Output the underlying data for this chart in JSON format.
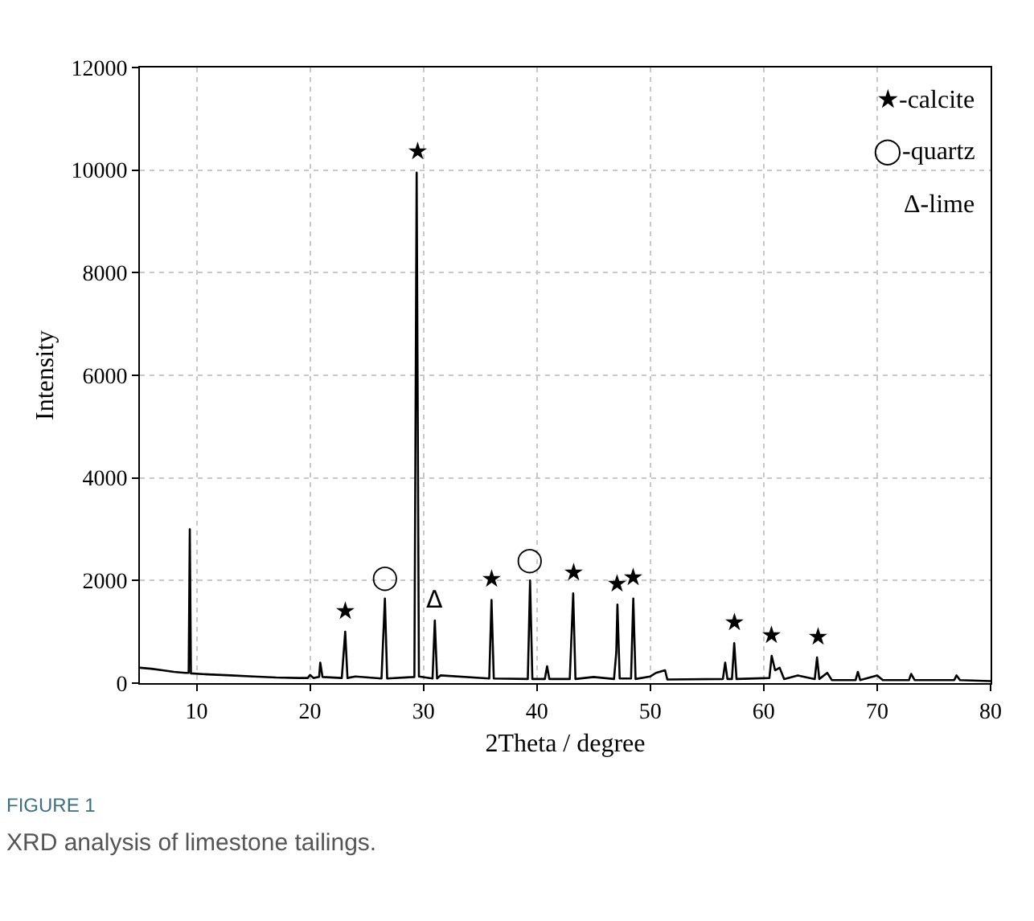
{
  "chart_data": {
    "type": "line",
    "xlabel": "2Theta / degree",
    "ylabel": "Intensity",
    "x": [
      5,
      6,
      7,
      8,
      9,
      9.3,
      9.4,
      9.5,
      11,
      13,
      15,
      17,
      19,
      19.8,
      20,
      20.3,
      20.8,
      20.9,
      21.1,
      22.8,
      23.1,
      23.3,
      24,
      26.3,
      26.6,
      26.8,
      29.2,
      29.4,
      29.6,
      30.8,
      31.0,
      31.2,
      31.5,
      35.8,
      36.0,
      36.2,
      39.2,
      39.4,
      39.6,
      40.7,
      40.9,
      41.1,
      42.9,
      43.2,
      43.4,
      45,
      46.8,
      47.0,
      47.1,
      47.3,
      48.3,
      48.5,
      48.7,
      50,
      50.5,
      51.3,
      51.5,
      56.4,
      56.6,
      56.8,
      57.2,
      57.4,
      57.6,
      60.5,
      60.7,
      61.0,
      61.4,
      61.8,
      63,
      64.5,
      64.7,
      64.9,
      65.6,
      66,
      68.1,
      68.3,
      68.5,
      70,
      70.5,
      72.8,
      73,
      73.3,
      76.8,
      77,
      77.3,
      80
    ],
    "series": [
      {
        "color": "#000000",
        "values": [
          300,
          280,
          250,
          220,
          200,
          200,
          3000,
          190,
          170,
          150,
          130,
          110,
          100,
          100,
          160,
          100,
          120,
          400,
          120,
          100,
          1000,
          100,
          130,
          90,
          1650,
          90,
          120,
          9950,
          130,
          90,
          1220,
          90,
          150,
          90,
          1620,
          90,
          80,
          2000,
          80,
          80,
          330,
          80,
          80,
          1750,
          80,
          120,
          80,
          600,
          1530,
          90,
          90,
          1650,
          80,
          130,
          200,
          250,
          70,
          80,
          400,
          80,
          80,
          780,
          80,
          100,
          530,
          250,
          300,
          80,
          150,
          80,
          500,
          80,
          200,
          60,
          60,
          220,
          60,
          150,
          60,
          60,
          180,
          60,
          60,
          150,
          60,
          40
        ]
      }
    ],
    "xlim": [
      5,
      80
    ],
    "xticks": [
      10,
      20,
      30,
      40,
      50,
      60,
      70,
      80
    ],
    "ylim": [
      0,
      12000
    ],
    "yticks": [
      0,
      2000,
      4000,
      6000,
      8000,
      10000,
      12000
    ],
    "grid": true,
    "marker": "none",
    "line_style": "solid",
    "annotations": [
      {
        "text": "★",
        "x": 23.1,
        "y": 1000
      },
      {
        "text": "★",
        "x": 29.4,
        "y": 9950
      },
      {
        "text": "★",
        "x": 36.0,
        "y": 1620
      },
      {
        "text": "★",
        "x": 43.2,
        "y": 1750
      },
      {
        "text": "★",
        "x": 47.1,
        "y": 1530
      },
      {
        "text": "★",
        "x": 48.5,
        "y": 1650
      },
      {
        "text": "★",
        "x": 57.4,
        "y": 780
      },
      {
        "text": "★",
        "x": 60.7,
        "y": 530
      },
      {
        "text": "★",
        "x": 64.7,
        "y": 500
      },
      {
        "text": "◯",
        "x": 26.6,
        "y": 1650
      },
      {
        "text": "◯",
        "x": 39.4,
        "y": 2000
      },
      {
        "text": "Δ",
        "x": 31.0,
        "y": 1220
      },
      "★-calcite",
      "◯-quartz",
      "Δ-lime",
      "FIGURE 1",
      "XRD analysis of limestone tailings."
    ]
  }
}
